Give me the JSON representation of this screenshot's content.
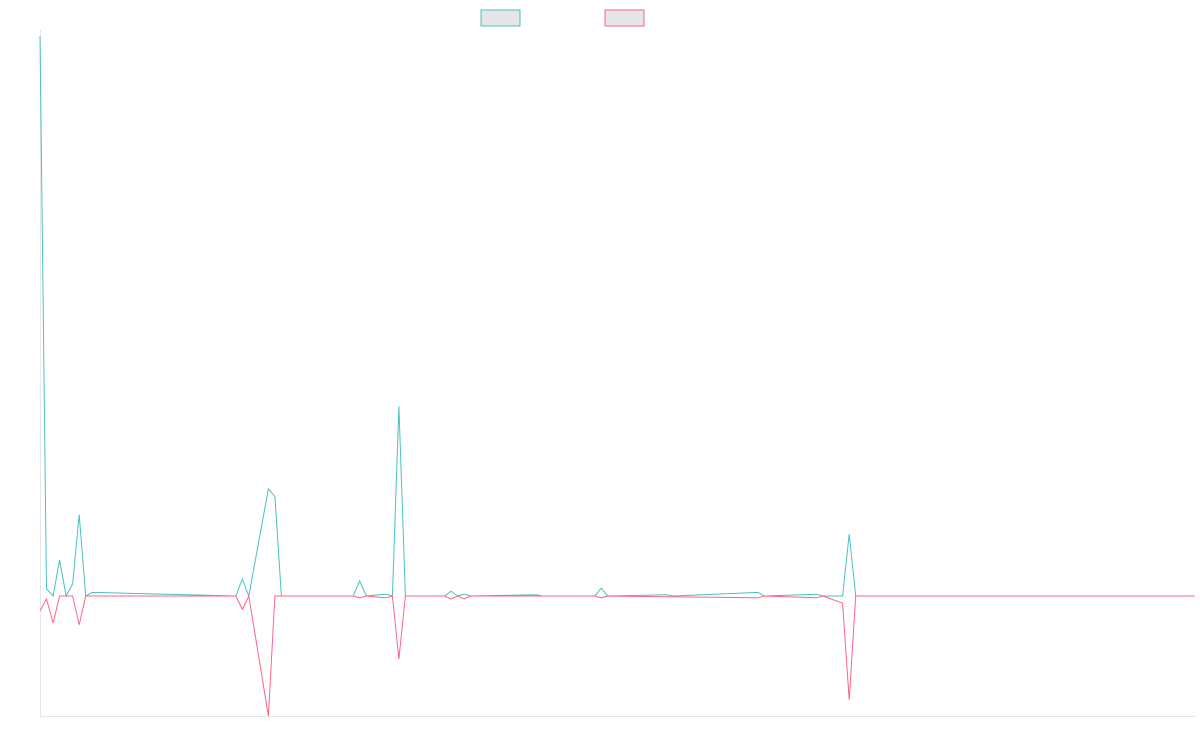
{
  "chart_data": {
    "type": "line",
    "title": "",
    "xlabel": "",
    "ylabel": "",
    "grid": false,
    "legend_position": "top-center",
    "colors": {
      "series_a": "#4bc0c0",
      "series_b": "#ff6384",
      "legend_fill": "#e6e6e6",
      "axis": "#e6e6e6"
    },
    "x_count": 178,
    "ylim": [
      -20,
      93
    ],
    "series": [
      {
        "values": [
          {
            "i": 0,
            "v": 93
          },
          {
            "i": 1,
            "v": 1.2
          },
          {
            "i": 2,
            "v": 0
          },
          {
            "i": 3,
            "v": 6
          },
          {
            "i": 4,
            "v": 0
          },
          {
            "i": 5,
            "v": 2
          },
          {
            "i": 6,
            "v": 13.5
          },
          {
            "i": 7,
            "v": 0
          },
          {
            "i": 8,
            "v": 0.6
          },
          {
            "i": 30,
            "v": 0
          },
          {
            "i": 31,
            "v": 2.8
          },
          {
            "i": 32,
            "v": 0
          },
          {
            "i": 35,
            "v": 17.8
          },
          {
            "i": 36,
            "v": 16.5
          },
          {
            "i": 37,
            "v": 0
          },
          {
            "i": 48,
            "v": 0
          },
          {
            "i": 49,
            "v": 2.5
          },
          {
            "i": 50,
            "v": 0
          },
          {
            "i": 53,
            "v": 0.3
          },
          {
            "i": 54,
            "v": 0
          },
          {
            "i": 55,
            "v": 31.5
          },
          {
            "i": 56,
            "v": 0
          },
          {
            "i": 62,
            "v": 0
          },
          {
            "i": 63,
            "v": 0.8
          },
          {
            "i": 64,
            "v": 0
          },
          {
            "i": 65,
            "v": 0.3
          },
          {
            "i": 66,
            "v": 0
          },
          {
            "i": 76,
            "v": 0.2
          },
          {
            "i": 77,
            "v": 0
          },
          {
            "i": 85,
            "v": 0
          },
          {
            "i": 86,
            "v": 1.3
          },
          {
            "i": 87,
            "v": 0
          },
          {
            "i": 96,
            "v": 0.2
          },
          {
            "i": 97,
            "v": 0
          },
          {
            "i": 110,
            "v": 0.6
          },
          {
            "i": 111,
            "v": 0
          },
          {
            "i": 119,
            "v": 0.3
          },
          {
            "i": 120,
            "v": 0
          },
          {
            "i": 123,
            "v": 0
          },
          {
            "i": 124,
            "v": 10.3
          },
          {
            "i": 125,
            "v": 0
          },
          {
            "i": 177,
            "v": 0
          }
        ]
      },
      {
        "values": [
          {
            "i": 0,
            "v": -2.5
          },
          {
            "i": 1,
            "v": -0.5
          },
          {
            "i": 2,
            "v": -4.5
          },
          {
            "i": 3,
            "v": 0
          },
          {
            "i": 5,
            "v": 0
          },
          {
            "i": 6,
            "v": -4.8
          },
          {
            "i": 7,
            "v": 0
          },
          {
            "i": 8,
            "v": 0
          },
          {
            "i": 30,
            "v": 0
          },
          {
            "i": 31,
            "v": -2.2
          },
          {
            "i": 32,
            "v": 0
          },
          {
            "i": 35,
            "v": -20
          },
          {
            "i": 36,
            "v": 0
          },
          {
            "i": 48,
            "v": 0
          },
          {
            "i": 49,
            "v": -0.3
          },
          {
            "i": 50,
            "v": 0
          },
          {
            "i": 53,
            "v": -0.3
          },
          {
            "i": 54,
            "v": 0
          },
          {
            "i": 55,
            "v": -10.5
          },
          {
            "i": 56,
            "v": 0
          },
          {
            "i": 62,
            "v": 0
          },
          {
            "i": 63,
            "v": -0.5
          },
          {
            "i": 64,
            "v": 0
          },
          {
            "i": 65,
            "v": -0.5
          },
          {
            "i": 66,
            "v": 0
          },
          {
            "i": 85,
            "v": 0
          },
          {
            "i": 86,
            "v": -0.3
          },
          {
            "i": 87,
            "v": 0
          },
          {
            "i": 110,
            "v": -0.3
          },
          {
            "i": 111,
            "v": 0
          },
          {
            "i": 119,
            "v": -0.3
          },
          {
            "i": 120,
            "v": 0
          },
          {
            "i": 123,
            "v": -1.2
          },
          {
            "i": 124,
            "v": -17.3
          },
          {
            "i": 125,
            "v": 0
          },
          {
            "i": 177,
            "v": 0
          }
        ]
      }
    ]
  }
}
